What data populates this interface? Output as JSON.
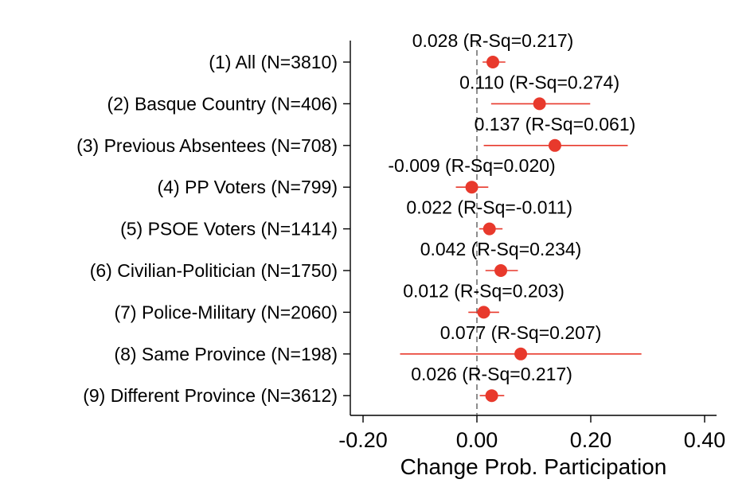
{
  "chart_data": {
    "type": "scatter",
    "subtype": "coefficient-plot",
    "xlabel": "Change Prob. Participation",
    "xlim": [
      -0.22,
      0.42
    ],
    "xticks": [
      -0.2,
      0.0,
      0.2,
      0.4
    ],
    "xtick_labels": [
      "-0.20",
      "0.00",
      "0.20",
      "0.40"
    ],
    "reference_line": 0,
    "marker_color": "#e8392c",
    "grid": false,
    "series": [
      {
        "label": "(1) All (N=3810)",
        "estimate": 0.028,
        "ci": [
          0.01,
          0.05
        ],
        "annotation": "0.028 (R-Sq=0.217)"
      },
      {
        "label": "(2) Basque Country (N=406)",
        "estimate": 0.11,
        "ci": [
          0.025,
          0.199
        ],
        "annotation": "0.110 (R-Sq=0.274)"
      },
      {
        "label": "(3) Previous Absentees (N=708)",
        "estimate": 0.137,
        "ci": [
          0.012,
          0.265
        ],
        "annotation": "0.137 (R-Sq=0.061)"
      },
      {
        "label": "(4) PP Voters (N=799)",
        "estimate": -0.009,
        "ci": [
          -0.037,
          0.02
        ],
        "annotation": "-0.009 (R-Sq=0.020)"
      },
      {
        "label": "(5) PSOE Voters (N=1414)",
        "estimate": 0.022,
        "ci": [
          0.004,
          0.045
        ],
        "annotation": "0.022 (R-Sq=-0.011)"
      },
      {
        "label": "(6) Civilian-Politician (N=1750)",
        "estimate": 0.042,
        "ci": [
          0.015,
          0.072
        ],
        "annotation": "0.042 (R-Sq=0.234)"
      },
      {
        "label": "(7) Police-Military (N=2060)",
        "estimate": 0.012,
        "ci": [
          -0.015,
          0.039
        ],
        "annotation": "0.012 (R-Sq=0.203)"
      },
      {
        "label": "(8) Same Province (N=198)",
        "estimate": 0.077,
        "ci": [
          -0.135,
          0.289
        ],
        "annotation": "0.077 (R-Sq=0.207)"
      },
      {
        "label": "(9) Different Province (N=3612)",
        "estimate": 0.026,
        "ci": [
          0.005,
          0.048
        ],
        "annotation": "0.026 (R-Sq=0.217)"
      }
    ]
  }
}
